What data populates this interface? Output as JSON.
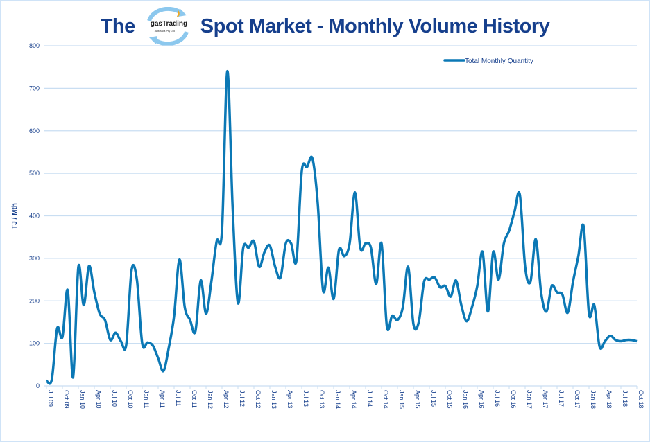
{
  "title": {
    "prefix": "The",
    "suffix": "Spot Market - Monthly Volume History",
    "logo_text": "gasTrading",
    "logo_subtext": "Australia Pty Ltd"
  },
  "colors": {
    "line": "#0b78b5",
    "grid": "#c9def2",
    "text": "#163f8c"
  },
  "chart_data": {
    "type": "line",
    "title": "The gasTrading Spot Market - Monthly Volume History",
    "ylabel": "TJ / Mth",
    "xlabel": "",
    "ylim": [
      0,
      800
    ],
    "yticks": [
      0,
      100,
      200,
      300,
      400,
      500,
      600,
      700,
      800
    ],
    "grid": true,
    "legend_position": "top-right",
    "x_tick_labels": [
      "Jul 09",
      "Oct 09",
      "Jan 10",
      "Apr 10",
      "Jul 10",
      "Oct 10",
      "Jan 11",
      "Apr 11",
      "Jul 11",
      "Oct 11",
      "Jan 12",
      "Apr 12",
      "Jul 12",
      "Oct 12",
      "Jan 13",
      "Apr 13",
      "Jul 13",
      "Oct 13",
      "Jan 14",
      "Apr 14",
      "Jul 14",
      "Oct 14",
      "Jan 15",
      "Apr 15",
      "Jul 15",
      "Oct 15",
      "Jan 16",
      "Apr 16",
      "Jul 16",
      "Oct 16",
      "Jan 17",
      "Apr 17",
      "Jul 17",
      "Oct 17",
      "Jan 18",
      "Apr 18",
      "Jul 18",
      "Oct 18"
    ],
    "x_start": "Jul 09",
    "x_end": "Oct 18",
    "series": [
      {
        "name": "Total Monthly Quantity",
        "values": [
          12,
          15,
          135,
          115,
          225,
          20,
          280,
          190,
          282,
          220,
          170,
          155,
          108,
          125,
          105,
          97,
          272,
          250,
          100,
          102,
          95,
          65,
          35,
          90,
          165,
          297,
          185,
          155,
          128,
          248,
          170,
          245,
          340,
          365,
          740,
          420,
          195,
          325,
          325,
          340,
          280,
          315,
          330,
          280,
          255,
          335,
          335,
          295,
          505,
          515,
          535,
          430,
          225,
          278,
          205,
          320,
          305,
          335,
          455,
          325,
          335,
          325,
          240,
          335,
          140,
          165,
          155,
          185,
          280,
          145,
          150,
          245,
          250,
          255,
          232,
          235,
          210,
          248,
          190,
          152,
          185,
          235,
          315,
          175,
          315,
          250,
          335,
          365,
          410,
          450,
          280,
          245,
          345,
          220,
          175,
          235,
          220,
          215,
          172,
          245,
          305,
          375,
          170,
          190,
          92,
          105,
          118,
          108,
          105,
          108,
          108,
          105
        ]
      }
    ]
  }
}
